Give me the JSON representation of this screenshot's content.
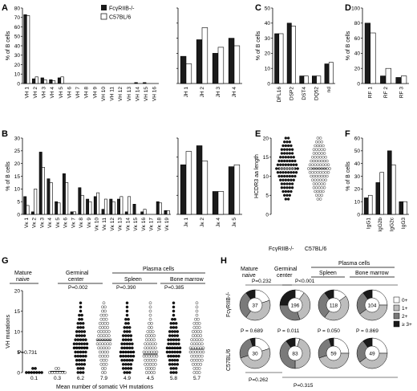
{
  "legend": {
    "ko": "FcγRIIB-/-",
    "wt": "C57BL/6"
  },
  "colors": {
    "ko": "#1a1a1a",
    "wt": "#ffffff",
    "gray": "#bdbdbd",
    "dark_gray": "#7a7a7a"
  },
  "chart_data": [
    {
      "panel": "A",
      "type": "bar",
      "ylabel": "% of B cells",
      "ylim": [
        0,
        80
      ],
      "yticks": [
        0,
        10,
        20,
        30,
        40,
        50,
        60,
        70,
        80
      ],
      "categories": [
        "VH 1",
        "VH 2",
        "VH 3",
        "VH 4",
        "VH 5",
        "VH 6",
        "VH 7",
        "VH 8",
        "VH 9",
        "VH 10",
        "VH 11",
        "VH 12",
        "VH 13",
        "VH 14",
        "VH 15",
        "VH 16"
      ],
      "series": [
        {
          "name": "FcγRIIB-/-",
          "values": [
            73,
            5,
            6,
            4,
            6,
            0,
            0,
            0,
            0,
            0,
            0,
            0,
            0,
            1,
            1,
            0
          ]
        },
        {
          "name": "C57BL/6",
          "values": [
            72,
            7,
            4,
            3,
            7,
            0,
            0,
            0,
            0,
            0,
            0,
            0,
            0,
            0,
            0,
            0
          ]
        }
      ]
    },
    {
      "panel": "A2",
      "type": "bar",
      "ylim": [
        0,
        50
      ],
      "categories": [
        "JH 1",
        "JH 2",
        "JH 3",
        "JH 4"
      ],
      "series": [
        {
          "name": "FcγRIIB-/-",
          "values": [
            18,
            29,
            20,
            30
          ]
        },
        {
          "name": "C57BL/6",
          "values": [
            13,
            37,
            24,
            25
          ]
        }
      ]
    },
    {
      "panel": "C",
      "type": "bar",
      "ylabel": "% of B cells",
      "ylim": [
        0,
        50
      ],
      "yticks": [
        0,
        10,
        20,
        30,
        40,
        50
      ],
      "categories": [
        "DFL16",
        "DSP2",
        "DST4",
        "DQ52",
        "nd"
      ],
      "series": [
        {
          "name": "FcγRIIB-/-",
          "values": [
            33,
            40,
            5,
            5,
            13
          ]
        },
        {
          "name": "C57BL/6",
          "values": [
            33,
            38,
            5,
            5,
            14
          ]
        }
      ]
    },
    {
      "panel": "D",
      "type": "bar",
      "ylabel": "% of B cells",
      "ylim": [
        0,
        100
      ],
      "yticks": [
        0,
        20,
        40,
        60,
        80,
        100
      ],
      "categories": [
        "RF 1",
        "RF 2",
        "RF 3"
      ],
      "series": [
        {
          "name": "FcγRIIB-/-",
          "values": [
            80,
            10,
            8
          ]
        },
        {
          "name": "C57BL/6",
          "values": [
            67,
            20,
            10
          ]
        }
      ]
    },
    {
      "panel": "B",
      "type": "bar",
      "ylabel": "% of B cells",
      "ylim": [
        0,
        30
      ],
      "yticks": [
        0,
        5,
        10,
        15,
        20,
        25,
        30
      ],
      "categories": [
        "Vκ 1",
        "Vκ 2",
        "Vκ 3",
        "Vκ 4",
        "Vκ 5",
        "Vκ 6",
        "Vκ 7",
        "Vκ 8",
        "Vκ 9",
        "Vκ 10",
        "Vκ 11",
        "Vκ 12",
        "Vκ 13",
        "Vκ 14",
        "Vκ 15",
        "Vκ 16",
        "Vκ 17",
        "Vκ 18",
        "Vκ 19"
      ],
      "series": [
        {
          "name": "FcγRIIB-/-",
          "values": [
            7,
            1,
            24.5,
            14,
            5,
            16,
            1,
            10.5,
            6,
            7,
            2,
            6,
            6,
            1,
            4,
            1,
            0,
            5,
            1.5
          ]
        },
        {
          "name": "C57BL/6",
          "values": [
            3.5,
            10,
            18.5,
            12.5,
            4.5,
            12.5,
            1,
            7.5,
            5,
            8.5,
            6,
            5,
            7,
            7,
            0,
            2,
            0,
            4.5,
            1.5
          ]
        }
      ]
    },
    {
      "panel": "B2",
      "type": "bar",
      "ylim": [
        0,
        40
      ],
      "categories": [
        "Jκ 1",
        "Jκ 2",
        "Jκ 4",
        "Jκ 5"
      ],
      "series": [
        {
          "name": "FcγRIIB-/-",
          "values": [
            26,
            36,
            12,
            25
          ]
        },
        {
          "name": "C57BL/6",
          "values": [
            33,
            28,
            12,
            26
          ]
        }
      ]
    },
    {
      "panel": "E",
      "type": "scatter",
      "ylabel": "HCDR3 aa length",
      "ylim": [
        0,
        20
      ],
      "yticks": [
        0,
        5,
        10,
        15,
        20
      ],
      "categories": [
        "FcγRIIB-/-",
        "C57BL/6"
      ]
    },
    {
      "panel": "F",
      "type": "bar",
      "ylabel": "% of B cells",
      "ylim": [
        0,
        60
      ],
      "yticks": [
        0,
        10,
        20,
        30,
        40,
        50,
        60
      ],
      "categories": [
        "IgG1",
        "IgG2b",
        "IgG2c",
        "IgG3"
      ],
      "series": [
        {
          "name": "FcγRIIB-/-",
          "values": [
            13,
            25,
            50,
            10
          ]
        },
        {
          "name": "C57BL/6",
          "values": [
            15,
            33,
            39,
            10
          ]
        }
      ]
    },
    {
      "panel": "G",
      "type": "scatter",
      "ylabel": "VH mutations",
      "xlabel": "Mean number of somatic VH mutations",
      "ylim": [
        0,
        20
      ],
      "yticks": [
        0,
        5,
        10,
        15,
        20
      ],
      "groups": [
        "Mature naive",
        "Germinal center",
        "Plasma cells",
        "Spleen",
        "Bone marrow"
      ],
      "pvalues": [
        "P=0.731",
        "P=0.002",
        "P=0.390",
        "P=0.385"
      ],
      "means": [
        "0.1",
        "0.3",
        "6.2",
        "7.9",
        "4.9",
        "4.5",
        "5.8",
        "5.7"
      ]
    },
    {
      "panel": "H",
      "type": "pie",
      "groups": [
        "Mature naive",
        "Germinal center",
        "Plasma cells",
        "Spleen",
        "Bone marrow"
      ],
      "rows": [
        "FcγRIIB-/-",
        "C57BL/6"
      ],
      "legend": [
        "0+",
        "1+",
        "2+",
        "≥ 3+"
      ],
      "counts_ko": [
        "37",
        "196",
        "118",
        "104"
      ],
      "counts_wt": [
        "30",
        "83",
        "59",
        "49"
      ],
      "pvalues_top": [
        "P=0.232",
        "P<0.001"
      ],
      "pvalues_mid": [
        "P = 0.689",
        "P = 0.011",
        "P = 0.050",
        "P = 0.869"
      ],
      "pvalues_bottom": [
        "P=0.262",
        "P=0.315"
      ],
      "pies_ko": [
        [
          20,
          40,
          30,
          10
        ],
        [
          10,
          35,
          30,
          25
        ],
        [
          15,
          45,
          30,
          10
        ],
        [
          25,
          40,
          25,
          10
        ]
      ],
      "pies_wt": [
        [
          20,
          50,
          25,
          5
        ],
        [
          5,
          45,
          40,
          10
        ],
        [
          25,
          45,
          25,
          5
        ],
        [
          25,
          40,
          25,
          10
        ]
      ]
    }
  ]
}
